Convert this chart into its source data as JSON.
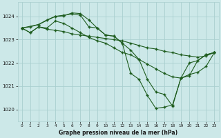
{
  "title": "Graphe pression niveau de la mer (hPa)",
  "bg_color": "#cce8e8",
  "grid_color": "#aacfcf",
  "line_color": "#1e5c1e",
  "marker": "+",
  "xlim": [
    -0.5,
    23.5
  ],
  "ylim": [
    1019.5,
    1024.6
  ],
  "yticks": [
    1020,
    1021,
    1022,
    1023,
    1024
  ],
  "xticks": [
    0,
    1,
    2,
    3,
    4,
    5,
    6,
    7,
    8,
    9,
    10,
    11,
    12,
    13,
    14,
    15,
    16,
    17,
    18,
    19,
    20,
    21,
    22,
    23
  ],
  "series": [
    {
      "x": [
        0,
        1,
        2,
        3,
        4,
        5,
        6,
        7,
        8,
        9,
        10,
        11,
        12,
        13,
        14,
        15,
        16,
        17,
        18,
        19,
        20,
        21,
        22,
        23
      ],
      "y": [
        1023.5,
        1023.3,
        1023.55,
        1023.45,
        1023.4,
        1023.35,
        1023.25,
        1023.2,
        1023.15,
        1023.1,
        1023.05,
        1023.0,
        1022.95,
        1022.85,
        1022.75,
        1022.65,
        1022.6,
        1022.5,
        1022.45,
        1022.35,
        1022.3,
        1022.25,
        1022.3,
        1022.45
      ]
    },
    {
      "x": [
        0,
        1,
        2,
        3,
        4,
        5,
        6,
        7,
        8,
        9,
        10,
        11,
        12,
        13,
        14,
        15,
        16,
        17,
        18,
        19,
        20,
        21,
        22,
        23
      ],
      "y": [
        1023.5,
        1023.55,
        1023.65,
        1023.85,
        1024.0,
        1024.05,
        1024.1,
        1024.05,
        1023.55,
        1023.5,
        1023.2,
        1023.15,
        1022.85,
        1022.55,
        1022.15,
        1021.3,
        1020.75,
        1020.65,
        1020.15,
        1021.35,
        1022.0,
        1022.1,
        1022.35,
        1022.45
      ]
    },
    {
      "x": [
        0,
        2,
        4,
        5,
        6,
        7,
        8,
        9,
        10,
        11,
        12,
        13,
        14,
        15,
        16,
        17,
        18,
        19,
        20,
        21,
        22,
        23
      ],
      "y": [
        1023.5,
        1023.65,
        1024.0,
        1024.02,
        1024.15,
        1024.12,
        1023.85,
        1023.5,
        1023.2,
        1023.15,
        1022.85,
        1021.55,
        1021.3,
        1020.6,
        1020.05,
        1020.1,
        1020.2,
        1021.35,
        1021.45,
        1022.1,
        1022.35,
        1022.45
      ]
    },
    {
      "x": [
        0,
        1,
        2,
        3,
        4,
        5,
        6,
        7,
        8,
        9,
        10,
        11,
        12,
        13,
        14,
        15,
        16,
        17,
        18,
        19,
        20,
        21,
        22,
        23
      ],
      "y": [
        1023.5,
        1023.3,
        1023.55,
        1023.5,
        1023.8,
        1023.7,
        1023.5,
        1023.3,
        1023.1,
        1022.95,
        1022.85,
        1022.65,
        1022.45,
        1022.35,
        1022.15,
        1021.95,
        1021.75,
        1021.55,
        1021.4,
        1021.35,
        1021.5,
        1021.6,
        1021.85,
        1022.45
      ]
    }
  ]
}
